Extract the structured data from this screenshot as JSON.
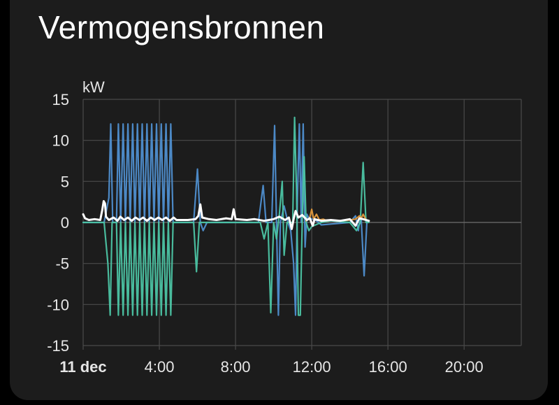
{
  "card": {
    "title": "Vermogensbronnen"
  },
  "chart_data": {
    "type": "line",
    "title": "Vermogensbronnen",
    "unit": "kW",
    "ylim": [
      -15,
      15
    ],
    "yticks": [
      15,
      10,
      5,
      0,
      -5,
      -10,
      -15
    ],
    "xlim": [
      0,
      23
    ],
    "xticks": [
      {
        "value": 0,
        "label": "11 dec",
        "bold": true
      },
      {
        "value": 4,
        "label": "4:00",
        "bold": false
      },
      {
        "value": 8,
        "label": "8:00",
        "bold": false
      },
      {
        "value": 12,
        "label": "12:00",
        "bold": false
      },
      {
        "value": 16,
        "label": "16:00",
        "bold": false
      },
      {
        "value": 20,
        "label": "20:00",
        "bold": false
      }
    ],
    "grid": true,
    "colors": {
      "background": "#1c1c1c",
      "grid": "#4a4a4a",
      "text": "#e6e6e6"
    },
    "series": [
      {
        "color": "#4f8fd0",
        "points": [
          [
            0,
            0
          ],
          [
            1.1,
            0
          ],
          [
            1.35,
            3
          ],
          [
            1.45,
            12
          ],
          [
            1.55,
            0
          ],
          [
            1.75,
            0
          ],
          [
            1.85,
            12
          ],
          [
            1.97,
            0
          ],
          [
            2.1,
            12
          ],
          [
            2.22,
            0
          ],
          [
            2.35,
            12
          ],
          [
            2.47,
            0
          ],
          [
            2.6,
            12
          ],
          [
            2.72,
            0
          ],
          [
            2.85,
            12
          ],
          [
            2.97,
            0
          ],
          [
            3.1,
            12
          ],
          [
            3.22,
            0
          ],
          [
            3.35,
            12
          ],
          [
            3.47,
            0
          ],
          [
            3.6,
            12
          ],
          [
            3.72,
            0
          ],
          [
            3.85,
            12
          ],
          [
            3.97,
            0
          ],
          [
            4.1,
            12
          ],
          [
            4.22,
            0
          ],
          [
            4.35,
            12
          ],
          [
            4.47,
            0
          ],
          [
            4.6,
            12
          ],
          [
            4.72,
            0
          ],
          [
            5.8,
            0
          ],
          [
            6.0,
            6.5
          ],
          [
            6.15,
            0
          ],
          [
            6.3,
            -1
          ],
          [
            6.5,
            0
          ],
          [
            9.2,
            0
          ],
          [
            9.45,
            4.5
          ],
          [
            9.6,
            0
          ],
          [
            9.9,
            0
          ],
          [
            10.05,
            11.8
          ],
          [
            10.15,
            0
          ],
          [
            10.25,
            -11.3
          ],
          [
            10.35,
            0
          ],
          [
            10.55,
            2
          ],
          [
            10.75,
            0
          ],
          [
            10.9,
            -1
          ],
          [
            11.05,
            -5
          ],
          [
            11.15,
            -11.3
          ],
          [
            11.25,
            3
          ],
          [
            11.35,
            12
          ],
          [
            11.45,
            0
          ],
          [
            11.55,
            12
          ],
          [
            11.65,
            -3
          ],
          [
            11.75,
            1
          ],
          [
            11.85,
            0.5
          ],
          [
            12.2,
            0.3
          ],
          [
            12.5,
            -0.3
          ],
          [
            13.0,
            -0.2
          ],
          [
            14.0,
            0
          ],
          [
            14.3,
            0.8
          ],
          [
            14.45,
            -1
          ],
          [
            14.5,
            0
          ],
          [
            14.6,
            0.3
          ],
          [
            14.75,
            -6.5
          ],
          [
            14.9,
            0.3
          ],
          [
            15.0,
            0.2
          ]
        ]
      },
      {
        "color": "#4cc4a4",
        "points": [
          [
            0,
            0
          ],
          [
            1.1,
            0
          ],
          [
            1.3,
            -5
          ],
          [
            1.42,
            -11.3
          ],
          [
            1.52,
            0
          ],
          [
            1.75,
            0
          ],
          [
            1.85,
            -11.3
          ],
          [
            1.97,
            0
          ],
          [
            2.1,
            -11.3
          ],
          [
            2.22,
            0
          ],
          [
            2.35,
            -11.3
          ],
          [
            2.47,
            0
          ],
          [
            2.6,
            -11.3
          ],
          [
            2.72,
            0
          ],
          [
            2.85,
            -11.3
          ],
          [
            2.97,
            0
          ],
          [
            3.1,
            -11.3
          ],
          [
            3.22,
            0
          ],
          [
            3.35,
            -11.3
          ],
          [
            3.47,
            0
          ],
          [
            3.6,
            -11.3
          ],
          [
            3.72,
            0
          ],
          [
            3.85,
            -11.3
          ],
          [
            3.97,
            0
          ],
          [
            4.1,
            -11.3
          ],
          [
            4.22,
            0
          ],
          [
            4.35,
            -11.3
          ],
          [
            4.47,
            0
          ],
          [
            4.6,
            -11.3
          ],
          [
            4.72,
            0
          ],
          [
            5.8,
            0
          ],
          [
            5.95,
            -6
          ],
          [
            6.1,
            0
          ],
          [
            6.3,
            0
          ],
          [
            9.3,
            0
          ],
          [
            9.5,
            -2
          ],
          [
            9.7,
            0
          ],
          [
            9.85,
            -11
          ],
          [
            10.0,
            0
          ],
          [
            10.15,
            -2
          ],
          [
            10.3,
            1
          ],
          [
            10.45,
            5
          ],
          [
            10.55,
            -4
          ],
          [
            10.7,
            0
          ],
          [
            11.0,
            0
          ],
          [
            11.1,
            12.8
          ],
          [
            11.2,
            4
          ],
          [
            11.3,
            -11.3
          ],
          [
            11.4,
            -11.3
          ],
          [
            11.5,
            0
          ],
          [
            11.6,
            8
          ],
          [
            11.7,
            0
          ],
          [
            11.85,
            -1
          ],
          [
            12.0,
            -0.5
          ],
          [
            12.5,
            0
          ],
          [
            13.0,
            0.2
          ],
          [
            14.0,
            0
          ],
          [
            14.35,
            -1
          ],
          [
            14.55,
            0
          ],
          [
            14.7,
            7.3
          ],
          [
            14.85,
            0
          ],
          [
            15.0,
            0
          ]
        ]
      },
      {
        "color": "#e39a3c",
        "points": [
          [
            11.7,
            0.2
          ],
          [
            11.9,
            0.6
          ],
          [
            12.0,
            1.6
          ],
          [
            12.1,
            0.4
          ],
          [
            12.25,
            1.0
          ],
          [
            12.4,
            0.3
          ],
          [
            12.6,
            0.4
          ],
          [
            12.8,
            0.2
          ],
          [
            13.0,
            0.3
          ],
          [
            13.5,
            0.2
          ],
          [
            14.0,
            0.3
          ],
          [
            14.3,
            0.4
          ],
          [
            14.5,
            0.8
          ],
          [
            14.6,
            0.5
          ],
          [
            14.7,
            1.0
          ],
          [
            14.85,
            0.3
          ],
          [
            15.0,
            0.2
          ]
        ]
      },
      {
        "color": "#ffffff",
        "points": [
          [
            0,
            1.0
          ],
          [
            0.1,
            0.5
          ],
          [
            0.3,
            0.3
          ],
          [
            0.6,
            0.4
          ],
          [
            0.9,
            0.3
          ],
          [
            1.0,
            1.5
          ],
          [
            1.08,
            2.6
          ],
          [
            1.15,
            2.3
          ],
          [
            1.2,
            0.7
          ],
          [
            1.35,
            0.3
          ],
          [
            1.6,
            0.6
          ],
          [
            1.8,
            0.2
          ],
          [
            1.95,
            0.7
          ],
          [
            2.15,
            0.3
          ],
          [
            2.35,
            0.6
          ],
          [
            2.55,
            0.2
          ],
          [
            2.75,
            0.6
          ],
          [
            2.95,
            0.3
          ],
          [
            3.15,
            0.6
          ],
          [
            3.35,
            0.2
          ],
          [
            3.55,
            0.6
          ],
          [
            3.75,
            0.3
          ],
          [
            3.95,
            0.6
          ],
          [
            4.15,
            0.3
          ],
          [
            4.35,
            0.6
          ],
          [
            4.55,
            0.2
          ],
          [
            4.75,
            0.6
          ],
          [
            4.9,
            0.3
          ],
          [
            5.5,
            0.3
          ],
          [
            5.9,
            0.4
          ],
          [
            6.05,
            0.8
          ],
          [
            6.15,
            2.2
          ],
          [
            6.25,
            0.6
          ],
          [
            6.6,
            0.4
          ],
          [
            7.0,
            0.3
          ],
          [
            7.5,
            0.5
          ],
          [
            7.8,
            0.4
          ],
          [
            7.9,
            1.6
          ],
          [
            8.0,
            0.4
          ],
          [
            8.6,
            0.3
          ],
          [
            9.0,
            0.4
          ],
          [
            9.5,
            0.2
          ],
          [
            10.0,
            0.4
          ],
          [
            10.3,
            0.7
          ],
          [
            10.6,
            0.3
          ],
          [
            10.8,
            0.6
          ],
          [
            10.95,
            -0.8
          ],
          [
            11.05,
            0.4
          ],
          [
            11.15,
            1.4
          ],
          [
            11.3,
            0.6
          ],
          [
            11.5,
            0.9
          ],
          [
            11.75,
            0.3
          ],
          [
            11.9,
            0.5
          ],
          [
            12.05,
            -0.4
          ],
          [
            12.15,
            0.4
          ],
          [
            12.5,
            0.2
          ],
          [
            13.0,
            0.3
          ],
          [
            13.5,
            0.2
          ],
          [
            14.0,
            0.4
          ],
          [
            14.3,
            -0.4
          ],
          [
            14.5,
            0.5
          ],
          [
            14.7,
            0.4
          ],
          [
            15.0,
            0.2
          ]
        ]
      }
    ]
  }
}
